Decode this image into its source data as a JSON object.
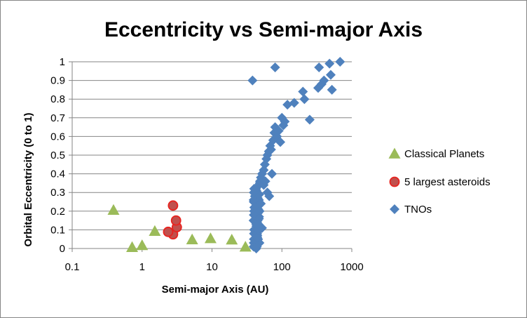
{
  "chart_data": {
    "type": "scatter",
    "title": "Eccentricity vs Semi-major Axis",
    "xlabel": "Semi-major Axis (AU)",
    "ylabel": "Orbital Eccentricity (0 to 1)",
    "xscale": "log",
    "xlim": [
      0.1,
      1000
    ],
    "ylim": [
      0,
      1
    ],
    "xticks": [
      "0.1",
      "1",
      "10",
      "100",
      "1000"
    ],
    "yticks": [
      "0",
      "0.1",
      "0.2",
      "0.3",
      "0.4",
      "0.5",
      "0.6",
      "0.7",
      "0.8",
      "0.9",
      "1"
    ],
    "grid": "horizontal",
    "legend": "right",
    "series": [
      {
        "name": "Classical Planets",
        "marker": "triangle",
        "color": "#9BBB59",
        "x": [
          0.39,
          0.72,
          1.0,
          1.52,
          5.2,
          9.54,
          19.2,
          30.1
        ],
        "y": [
          0.206,
          0.007,
          0.017,
          0.093,
          0.048,
          0.054,
          0.047,
          0.009
        ]
      },
      {
        "name": "5 largest asteroids",
        "marker": "circle",
        "color": "#C0504D",
        "x": [
          2.77,
          2.77,
          3.14,
          2.36,
          3.06
        ],
        "y": [
          0.076,
          0.23,
          0.114,
          0.089,
          0.15
        ]
      },
      {
        "name": "TNOs",
        "marker": "diamond",
        "color": "#4F81BD",
        "x": [
          39.4,
          39.5,
          39.7,
          39.8,
          40.0,
          39.3,
          39.6,
          39.9,
          40.2,
          39.5,
          41.0,
          42.0,
          42.5,
          43.0,
          43.5,
          44.0,
          44.5,
          45.0,
          43.8,
          44.2,
          44.8,
          45.5,
          46.0,
          46.5,
          47.0,
          47.5,
          43.2,
          44.1,
          45.2,
          46.2,
          47.2,
          42.8,
          43.6,
          44.6,
          45.8,
          47.8,
          48.2,
          43.9,
          44.3,
          45.1,
          46.8,
          39.4,
          39.6,
          40.1,
          41.5,
          42.3,
          43.1,
          44.4,
          45.4,
          48.5,
          50.0,
          52.0,
          55.0,
          57.0,
          60.0,
          62.0,
          65.0,
          68.0,
          70.0,
          72.0,
          75.0,
          78.0,
          80.0,
          85.0,
          90.0,
          95.0,
          100.0,
          105.0,
          110.0,
          120.0,
          150.0,
          200.0,
          210.0,
          250.0,
          330.0,
          340.0,
          370.0,
          400.0,
          480.0,
          500.0,
          520.0,
          680.0,
          38.0,
          80.0,
          55.0,
          58.0,
          62.0,
          66.0,
          52.0,
          50.0,
          48.0,
          47.0,
          46.0
        ],
        "y": [
          0.01,
          0.03,
          0.05,
          0.08,
          0.1,
          0.15,
          0.18,
          0.2,
          0.22,
          0.25,
          0.28,
          0.3,
          0.32,
          0.0,
          0.02,
          0.04,
          0.06,
          0.09,
          0.12,
          0.14,
          0.16,
          0.19,
          0.21,
          0.24,
          0.26,
          0.29,
          0.31,
          0.33,
          0.27,
          0.23,
          0.17,
          0.13,
          0.11,
          0.07,
          0.05,
          0.03,
          0.35,
          0.01,
          0.08,
          0.15,
          0.2,
          0.26,
          0.3,
          0.32,
          0.22,
          0.18,
          0.12,
          0.06,
          0.1,
          0.36,
          0.38,
          0.4,
          0.42,
          0.45,
          0.48,
          0.5,
          0.52,
          0.55,
          0.53,
          0.4,
          0.58,
          0.62,
          0.65,
          0.6,
          0.63,
          0.57,
          0.7,
          0.66,
          0.68,
          0.77,
          0.78,
          0.84,
          0.8,
          0.69,
          0.86,
          0.97,
          0.88,
          0.9,
          0.99,
          0.93,
          0.85,
          1.0,
          0.9,
          0.97,
          0.34,
          0.36,
          0.3,
          0.28,
          0.11,
          0.24,
          0.2,
          0.16,
          0.13
        ]
      }
    ]
  }
}
